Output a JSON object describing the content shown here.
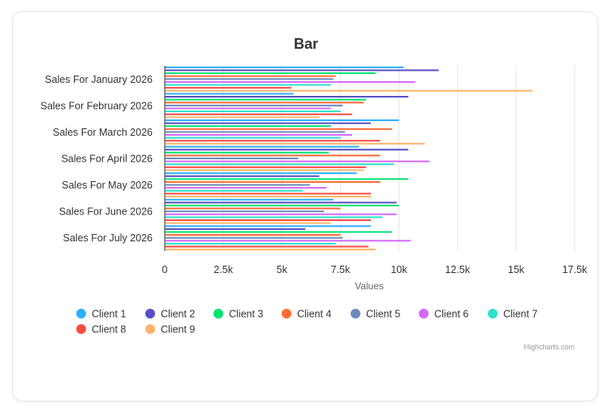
{
  "chart_data": {
    "type": "bar",
    "orientation": "horizontal",
    "title": "Bar",
    "xlabel": "",
    "ylabel": "Values",
    "xlim": [
      0,
      17500
    ],
    "tick_values": [
      0,
      2500,
      5000,
      7500,
      10000,
      12500,
      15000,
      17500
    ],
    "tick_labels": [
      "0",
      "2.5k",
      "5k",
      "7.5k",
      "10k",
      "12.5k",
      "15k",
      "17.5k"
    ],
    "grid": true,
    "legend_position": "bottom",
    "categories": [
      "Sales For January 2026",
      "Sales For February 2026",
      "Sales For March 2026",
      "Sales For April 2026",
      "Sales For May 2026",
      "Sales For June 2026",
      "Sales For July 2026"
    ],
    "series": [
      {
        "name": "Client 1",
        "color": "#2caffe",
        "values": [
          10200,
          5500,
          10000,
          8300,
          8200,
          7200,
          8800
        ]
      },
      {
        "name": "Client 2",
        "color": "#544fc5",
        "values": [
          11700,
          10400,
          8800,
          10400,
          6600,
          9900,
          6000
        ]
      },
      {
        "name": "Client 3",
        "color": "#00e272",
        "values": [
          9000,
          8600,
          7100,
          7000,
          10400,
          10000,
          9700
        ]
      },
      {
        "name": "Client 4",
        "color": "#fe6a35",
        "values": [
          7300,
          8500,
          9700,
          9200,
          9200,
          7500,
          7500
        ]
      },
      {
        "name": "Client 5",
        "color": "#6b8abc",
        "values": [
          7200,
          7600,
          7700,
          5700,
          6200,
          6800,
          7600
        ]
      },
      {
        "name": "Client 6",
        "color": "#d568fb",
        "values": [
          10700,
          7100,
          8000,
          11300,
          6900,
          9900,
          10500
        ]
      },
      {
        "name": "Client 7",
        "color": "#2ee0ca",
        "values": [
          7100,
          7500,
          7500,
          9800,
          5900,
          9300,
          7300
        ]
      },
      {
        "name": "Client 8",
        "color": "#fa4b42",
        "values": [
          5400,
          8000,
          9200,
          8600,
          8800,
          8800,
          8700
        ]
      },
      {
        "name": "Client 9",
        "color": "#feb56a",
        "values": [
          15700,
          6600,
          11100,
          8500,
          8800,
          7100,
          9000
        ]
      }
    ],
    "credits": "Highcharts.com"
  }
}
